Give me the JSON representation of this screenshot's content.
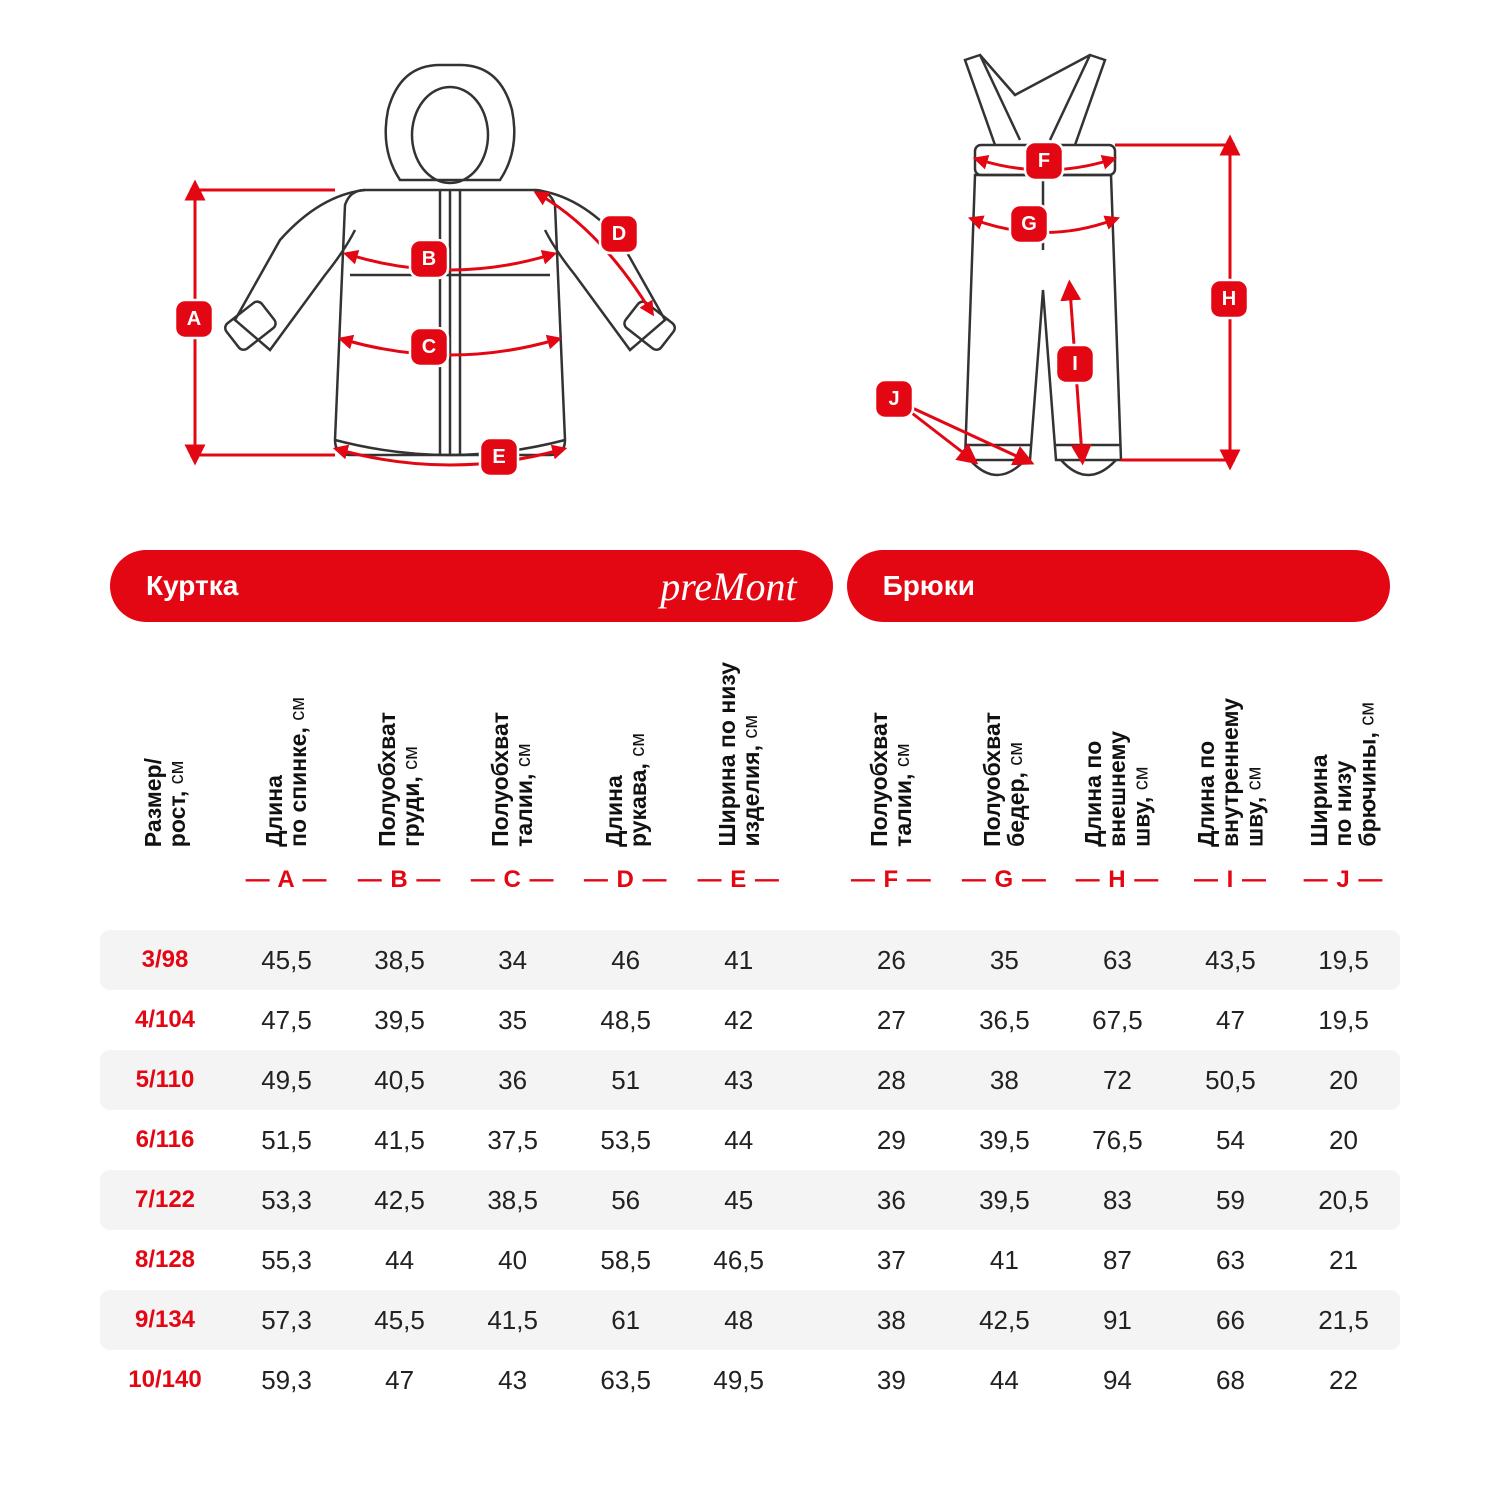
{
  "brand": "preMont",
  "sections": {
    "jacket": "Куртка",
    "pants": "Брюки"
  },
  "columns": [
    {
      "key": "size",
      "label_main": "Размер/\nрост,",
      "label_unit": "см",
      "letter": ""
    },
    {
      "key": "A",
      "label_main": "Длина\nпо спинке,",
      "label_unit": "см",
      "letter": "— A —"
    },
    {
      "key": "B",
      "label_main": "Полуобхват\nгруди,",
      "label_unit": "см",
      "letter": "— B —"
    },
    {
      "key": "C",
      "label_main": "Полуобхват\nталии,",
      "label_unit": "см",
      "letter": "— C —"
    },
    {
      "key": "D",
      "label_main": "Длина\nрукава,",
      "label_unit": "см",
      "letter": "— D —"
    },
    {
      "key": "E",
      "label_main": "Ширина по низу\nизделия,",
      "label_unit": "см",
      "letter": "— E —"
    },
    {
      "key": "gap",
      "label_main": "",
      "label_unit": "",
      "letter": ""
    },
    {
      "key": "F",
      "label_main": "Полуобхват\nталии,",
      "label_unit": "см",
      "letter": "— F —"
    },
    {
      "key": "G",
      "label_main": "Полуобхват\nбедер,",
      "label_unit": "см",
      "letter": "— G —"
    },
    {
      "key": "H",
      "label_main": "Длина по\nвнешнему\nшву,",
      "label_unit": "см",
      "letter": "— H —"
    },
    {
      "key": "I",
      "label_main": "Длина по\nвнутреннему\nшву,",
      "label_unit": "см",
      "letter": "— I —"
    },
    {
      "key": "J",
      "label_main": "Ширина\nпо низу\nбрючины,",
      "label_unit": "см",
      "letter": "— J —"
    }
  ],
  "rows": [
    {
      "size": "3/98",
      "A": "45,5",
      "B": "38,5",
      "C": "34",
      "D": "46",
      "E": "41",
      "F": "26",
      "G": "35",
      "H": "63",
      "I": "43,5",
      "J": "19,5"
    },
    {
      "size": "4/104",
      "A": "47,5",
      "B": "39,5",
      "C": "35",
      "D": "48,5",
      "E": "42",
      "F": "27",
      "G": "36,5",
      "H": "67,5",
      "I": "47",
      "J": "19,5"
    },
    {
      "size": "5/110",
      "A": "49,5",
      "B": "40,5",
      "C": "36",
      "D": "51",
      "E": "43",
      "F": "28",
      "G": "38",
      "H": "72",
      "I": "50,5",
      "J": "20"
    },
    {
      "size": "6/116",
      "A": "51,5",
      "B": "41,5",
      "C": "37,5",
      "D": "53,5",
      "E": "44",
      "F": "29",
      "G": "39,5",
      "H": "76,5",
      "I": "54",
      "J": "20"
    },
    {
      "size": "7/122",
      "A": "53,3",
      "B": "42,5",
      "C": "38,5",
      "D": "56",
      "E": "45",
      "F": "36",
      "G": "39,5",
      "H": "83",
      "I": "59",
      "J": "20,5"
    },
    {
      "size": "8/128",
      "A": "55,3",
      "B": "44",
      "C": "40",
      "D": "58,5",
      "E": "46,5",
      "F": "37",
      "G": "41",
      "H": "87",
      "I": "63",
      "J": "21"
    },
    {
      "size": "9/134",
      "A": "57,3",
      "B": "45,5",
      "C": "41,5",
      "D": "61",
      "E": "48",
      "F": "38",
      "G": "42,5",
      "H": "91",
      "I": "66",
      "J": "21,5"
    },
    {
      "size": "10/140",
      "A": "59,3",
      "B": "47",
      "C": "43",
      "D": "63,5",
      "E": "49,5",
      "F": "39",
      "G": "44",
      "H": "94",
      "I": "68",
      "J": "22"
    }
  ],
  "colors": {
    "accent": "#e30613",
    "row_alt": "#f4f4f4",
    "text": "#222222",
    "outline": "#333333",
    "bg": "#ffffff"
  },
  "diagram": {
    "jacket_markers": {
      "A": "A",
      "B": "B",
      "C": "C",
      "D": "D",
      "E": "E"
    },
    "pants_markers": {
      "F": "F",
      "G": "G",
      "H": "H",
      "I": "I",
      "J": "J"
    }
  }
}
